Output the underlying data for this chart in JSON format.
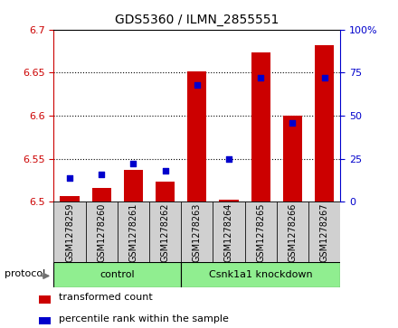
{
  "title": "GDS5360 / ILMN_2855551",
  "samples": [
    "GSM1278259",
    "GSM1278260",
    "GSM1278261",
    "GSM1278262",
    "GSM1278263",
    "GSM1278264",
    "GSM1278265",
    "GSM1278266",
    "GSM1278267"
  ],
  "red_values": [
    6.507,
    6.516,
    6.537,
    6.523,
    6.651,
    6.502,
    6.673,
    6.6,
    6.682
  ],
  "blue_values": [
    14,
    16,
    22,
    18,
    68,
    25,
    72,
    46,
    72
  ],
  "ylim_left": [
    6.5,
    6.7
  ],
  "ylim_right": [
    0,
    100
  ],
  "yticks_left": [
    6.5,
    6.55,
    6.6,
    6.65,
    6.7
  ],
  "yticks_right": [
    0,
    25,
    50,
    75,
    100
  ],
  "ytick_labels_left": [
    "6.5",
    "6.55",
    "6.6",
    "6.65",
    "6.7"
  ],
  "ytick_labels_right": [
    "0",
    "25",
    "50",
    "75",
    "100%"
  ],
  "control_count": 4,
  "group_labels": [
    "control",
    "Csnk1a1 knockdown"
  ],
  "group_color": "#90ee90",
  "bar_color": "#cc0000",
  "dot_color": "#0000cc",
  "bar_width": 0.6,
  "protocol_label": "protocol",
  "legend_red": "transformed count",
  "legend_blue": "percentile rank within the sample",
  "axis_color_left": "#cc0000",
  "axis_color_right": "#0000cc",
  "tick_bg_color": "#d0d0d0",
  "grid_dotted_ticks": [
    6.55,
    6.6,
    6.65
  ]
}
